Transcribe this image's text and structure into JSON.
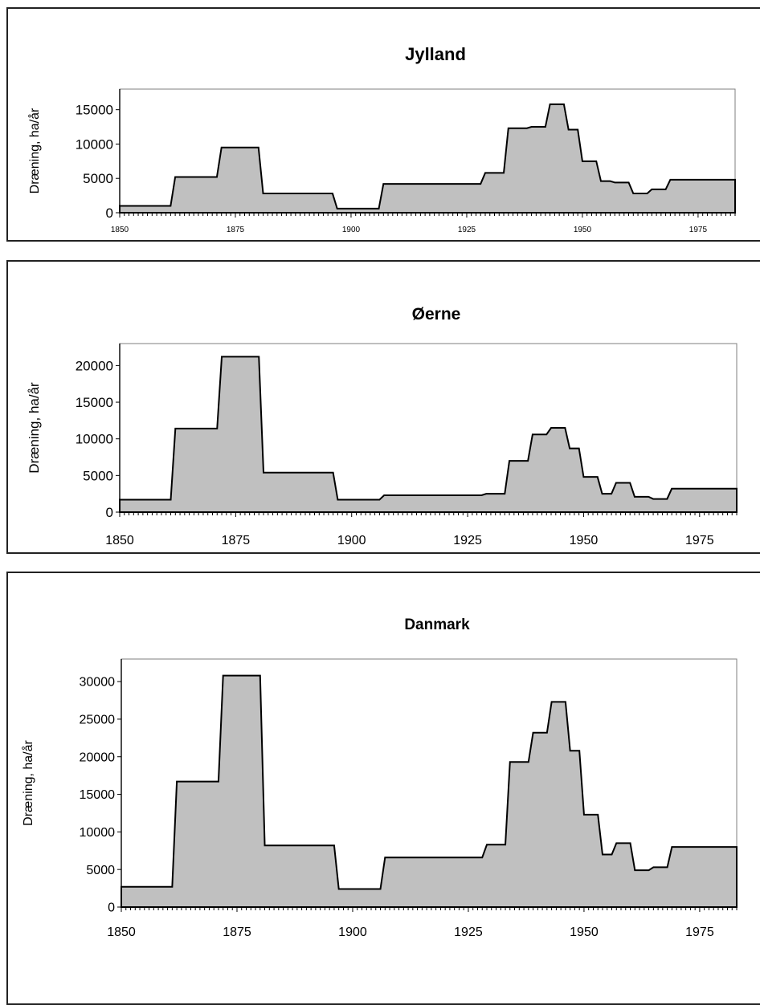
{
  "chart_data": [
    {
      "type": "area",
      "title": "Jylland",
      "ylabel": "Dræning, ha/år",
      "xlabel": "",
      "xlim": [
        1850,
        1983
      ],
      "ylim": [
        0,
        18000
      ],
      "yticks": [
        0,
        5000,
        10000,
        15000
      ],
      "xticks": [
        1850,
        1875,
        1900,
        1925,
        1950,
        1975
      ],
      "grid": false,
      "x": [
        1850,
        1861,
        1862,
        1871,
        1872,
        1880,
        1881,
        1896,
        1897,
        1906,
        1907,
        1928,
        1929,
        1933,
        1934,
        1938,
        1939,
        1942,
        1943,
        1946,
        1947,
        1949,
        1950,
        1953,
        1954,
        1956,
        1957,
        1960,
        1961,
        1964,
        1965,
        1968,
        1969,
        1972,
        1973,
        1976,
        1977,
        1979,
        1980,
        1983
      ],
      "values": [
        1000,
        1000,
        5200,
        5200,
        9500,
        9500,
        2800,
        2800,
        600,
        600,
        4200,
        4200,
        5800,
        5800,
        12300,
        12300,
        12500,
        12500,
        15800,
        15800,
        12100,
        12100,
        7500,
        7500,
        4600,
        4600,
        4400,
        4400,
        2800,
        2800,
        3400,
        3400,
        4800,
        4800,
        4800,
        4800,
        4800,
        4800,
        4800,
        4800
      ]
    },
    {
      "type": "area",
      "title": "Øerne",
      "ylabel": "Dræning, ha/år",
      "xlabel": "",
      "xlim": [
        1850,
        1983
      ],
      "ylim": [
        0,
        23000
      ],
      "yticks": [
        0,
        5000,
        10000,
        15000,
        20000
      ],
      "xticks": [
        1850,
        1875,
        1900,
        1925,
        1950,
        1975
      ],
      "grid": false,
      "x": [
        1850,
        1861,
        1862,
        1871,
        1872,
        1880,
        1881,
        1896,
        1897,
        1906,
        1907,
        1928,
        1929,
        1933,
        1934,
        1938,
        1939,
        1942,
        1943,
        1946,
        1947,
        1949,
        1950,
        1953,
        1954,
        1956,
        1957,
        1960,
        1961,
        1964,
        1965,
        1968,
        1969,
        1972,
        1973,
        1976,
        1977,
        1979,
        1980,
        1983
      ],
      "values": [
        1700,
        1700,
        11400,
        11400,
        21200,
        21200,
        5400,
        5400,
        1700,
        1700,
        2300,
        2300,
        2500,
        2500,
        7000,
        7000,
        10600,
        10600,
        11500,
        11500,
        8700,
        8700,
        4800,
        4800,
        2500,
        2500,
        4000,
        4000,
        2100,
        2100,
        1800,
        1800,
        3200,
        3200,
        3200,
        3200,
        3200,
        3200,
        3200,
        3200
      ]
    },
    {
      "type": "area",
      "title": "Danmark",
      "ylabel": "Dræning, ha/år",
      "xlabel": "",
      "xlim": [
        1850,
        1983
      ],
      "ylim": [
        0,
        33000
      ],
      "yticks": [
        0,
        5000,
        10000,
        15000,
        20000,
        25000,
        30000
      ],
      "xticks": [
        1850,
        1875,
        1900,
        1925,
        1950,
        1975
      ],
      "grid": false,
      "x": [
        1850,
        1861,
        1862,
        1871,
        1872,
        1880,
        1881,
        1896,
        1897,
        1906,
        1907,
        1928,
        1929,
        1933,
        1934,
        1938,
        1939,
        1942,
        1943,
        1946,
        1947,
        1949,
        1950,
        1953,
        1954,
        1956,
        1957,
        1960,
        1961,
        1964,
        1965,
        1968,
        1969,
        1972,
        1973,
        1976,
        1977,
        1979,
        1980,
        1983
      ],
      "values": [
        2700,
        2700,
        16700,
        16700,
        30800,
        30800,
        8200,
        8200,
        2400,
        2400,
        6600,
        6600,
        8300,
        8300,
        19300,
        19300,
        23200,
        23200,
        27300,
        27300,
        20800,
        20800,
        12300,
        12300,
        7000,
        7000,
        8500,
        8500,
        4900,
        4900,
        5300,
        5300,
        8000,
        8000,
        8000,
        8000,
        8000,
        8000,
        8000,
        8000
      ]
    }
  ]
}
